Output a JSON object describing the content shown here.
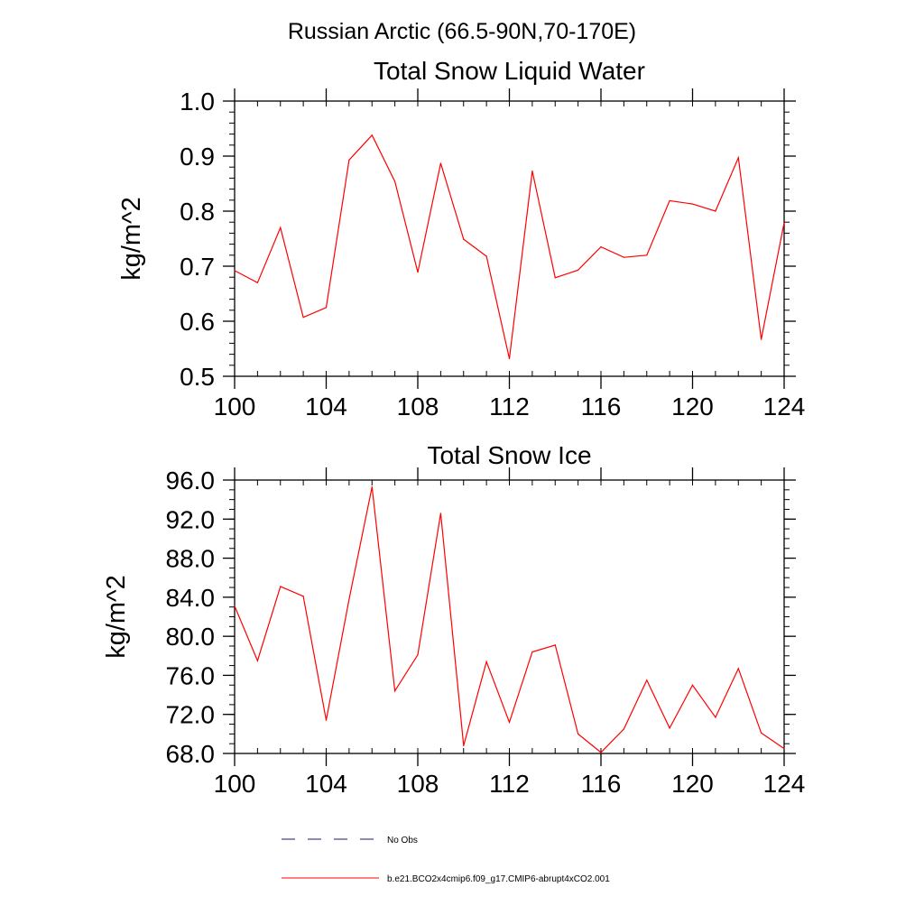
{
  "figure": {
    "suptitle": "Russian Arctic (66.5-90N,70-170E)"
  },
  "legend": {
    "placement": "bottom-left",
    "entries": [
      {
        "label": "No Obs",
        "color": "#1a1a66",
        "dashed": true
      },
      {
        "label": "b.e21.BCO2x4cmip6.f09_g17.CMIP6-abrupt4xCO2.001",
        "color": "#ff0000",
        "dashed": false
      }
    ]
  },
  "chart_data": [
    {
      "type": "line",
      "title": "Total Snow Liquid Water",
      "xlabel": "",
      "ylabel": "kg/m^2",
      "xlim": [
        100,
        124
      ],
      "ylim": [
        0.5,
        1.0
      ],
      "xticks": [
        100,
        104,
        108,
        112,
        116,
        120,
        124
      ],
      "xtick_labels": [
        "100",
        "104",
        "108",
        "112",
        "116",
        "120",
        "124"
      ],
      "yticks": [
        0.5,
        0.6,
        0.7,
        0.8,
        0.9,
        1.0
      ],
      "ytick_labels": [
        "0.5",
        "0.6",
        "0.7",
        "0.8",
        "0.9",
        "1.0"
      ],
      "grid": false,
      "series": [
        {
          "name": "b.e21.BCO2x4cmip6.f09_g17.CMIP6-abrupt4xCO2.001",
          "color": "#ff0000",
          "x": [
            100,
            101,
            102,
            103,
            104,
            105,
            106,
            107,
            108,
            109,
            110,
            111,
            112,
            113,
            114,
            115,
            116,
            117,
            118,
            119,
            120,
            121,
            122,
            123,
            124
          ],
          "values": [
            0.692,
            0.67,
            0.77,
            0.607,
            0.625,
            0.893,
            0.938,
            0.854,
            0.689,
            0.887,
            0.749,
            0.718,
            0.532,
            0.873,
            0.679,
            0.693,
            0.735,
            0.716,
            0.72,
            0.819,
            0.813,
            0.8,
            0.897,
            0.567,
            0.779
          ]
        }
      ]
    },
    {
      "type": "line",
      "title": "Total Snow Ice",
      "xlabel": "",
      "ylabel": "kg/m^2",
      "xlim": [
        100,
        124
      ],
      "ylim": [
        68.0,
        96.0
      ],
      "xticks": [
        100,
        104,
        108,
        112,
        116,
        120,
        124
      ],
      "xtick_labels": [
        "100",
        "104",
        "108",
        "112",
        "116",
        "120",
        "124"
      ],
      "yticks": [
        68,
        72,
        76,
        80,
        84,
        88,
        92,
        96
      ],
      "ytick_labels": [
        "68.0",
        "72.0",
        "76.0",
        "80.0",
        "84.0",
        "88.0",
        "92.0",
        "96.0"
      ],
      "grid": false,
      "series": [
        {
          "name": "b.e21.BCO2x4cmip6.f09_g17.CMIP6-abrupt4xCO2.001",
          "color": "#ff0000",
          "x": [
            100,
            101,
            102,
            103,
            104,
            105,
            106,
            107,
            108,
            109,
            110,
            111,
            112,
            113,
            114,
            115,
            116,
            117,
            118,
            119,
            120,
            121,
            122,
            123,
            124
          ],
          "values": [
            83.1,
            77.5,
            85.1,
            84.1,
            71.4,
            83.8,
            95.3,
            74.4,
            78.1,
            92.6,
            68.8,
            77.4,
            71.2,
            78.4,
            79.1,
            70.0,
            68.1,
            70.5,
            75.5,
            70.6,
            75.0,
            71.7,
            76.7,
            70.1,
            68.5
          ]
        }
      ]
    }
  ]
}
